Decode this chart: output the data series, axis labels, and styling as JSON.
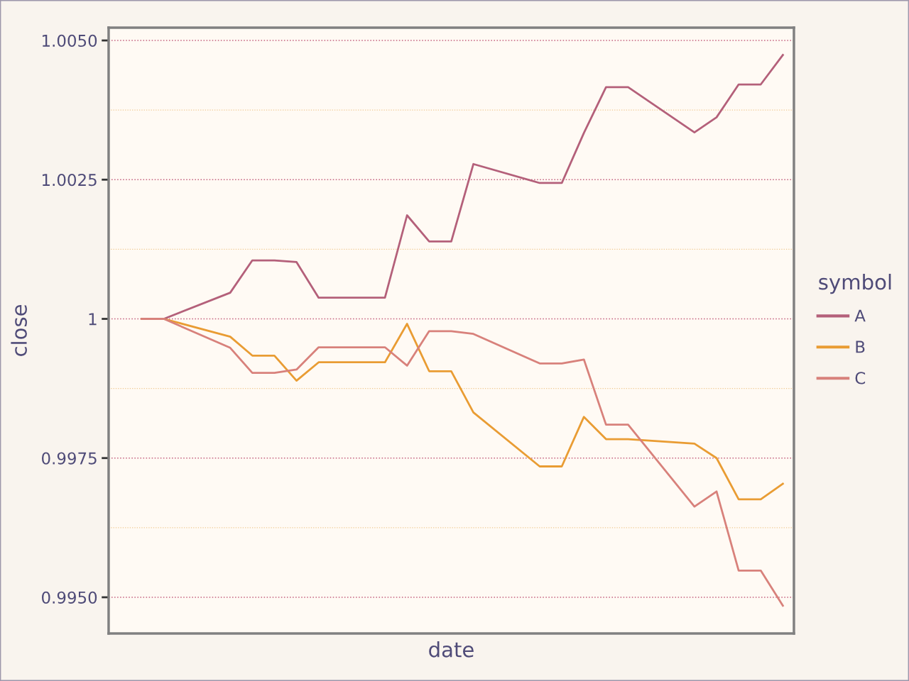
{
  "chart_data": {
    "type": "line",
    "xlabel": "date",
    "ylabel": "close",
    "legend_title": "symbol",
    "categories": [
      null,
      null,
      null,
      null,
      null,
      null,
      null,
      null,
      null,
      null,
      null,
      null,
      null,
      null,
      null,
      null,
      null,
      null,
      null,
      null,
      null,
      null,
      null,
      null,
      null,
      null,
      null,
      null,
      null,
      null
    ],
    "series": [
      {
        "name": "A",
        "color": "#b4607a",
        "values": [
          1.0,
          1.0,
          null,
          null,
          1.00047,
          1.00105,
          1.00105,
          1.00102,
          1.00038,
          null,
          null,
          1.00038,
          1.00186,
          1.00139,
          1.00139,
          1.00278,
          null,
          null,
          1.00244,
          1.00244,
          1.00334,
          1.00416,
          1.00416,
          null,
          null,
          1.00335,
          1.00362,
          1.00421,
          1.00421,
          1.00474
        ]
      },
      {
        "name": "B",
        "color": "#e99c33",
        "values": [
          1.0,
          1.0,
          null,
          null,
          0.99968,
          0.99934,
          0.99934,
          0.99889,
          0.99922,
          null,
          null,
          0.99922,
          0.99991,
          0.99906,
          0.99906,
          0.99832,
          null,
          null,
          0.99735,
          0.99735,
          0.99824,
          0.99784,
          0.99784,
          null,
          null,
          0.99776,
          0.9975,
          0.99676,
          0.99676,
          0.99704
        ]
      },
      {
        "name": "C",
        "color": "#d8817b",
        "values": [
          1.0,
          1.0,
          null,
          null,
          0.99948,
          0.99903,
          0.99903,
          0.99909,
          0.99949,
          null,
          null,
          0.99949,
          0.99916,
          0.99978,
          0.99978,
          0.99973,
          null,
          null,
          0.9992,
          0.9992,
          0.99927,
          0.9981,
          0.9981,
          null,
          null,
          0.99663,
          0.9969,
          0.99548,
          0.99548,
          0.99485
        ]
      }
    ],
    "ylim": [
      0.99435,
      1.00523
    ],
    "yticks": [
      {
        "value": 0.995,
        "label": "0.9950"
      },
      {
        "value": 0.99625,
        "label": null
      },
      0.9975,
      {
        "value": 0.99875,
        "label": null
      },
      1,
      {
        "value": 1.00125,
        "label": null
      },
      1.0025,
      {
        "value": 1.00375,
        "label": null
      },
      {
        "value": 1.005,
        "label": "1.0050"
      }
    ],
    "grid": "y",
    "legend": "right",
    "tick_labels": "y",
    "line_style": "solid"
  }
}
